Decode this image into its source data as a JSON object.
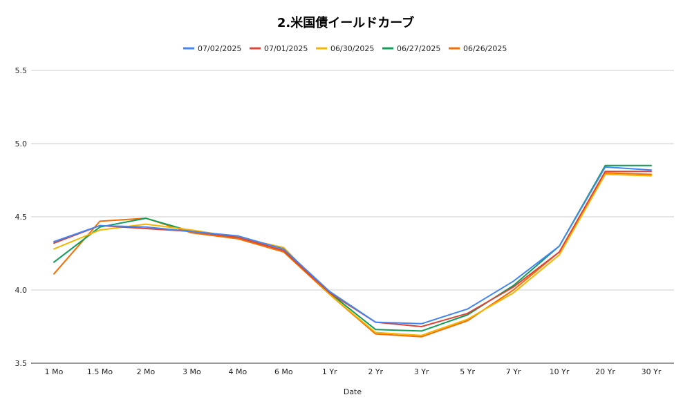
{
  "chart_data": {
    "type": "line",
    "title": "2.米国債イールドカーブ",
    "xlabel": "Date",
    "ylabel": "",
    "ylim": [
      3.5,
      5.5
    ],
    "yticks": [
      "3.5",
      "4.0",
      "4.5",
      "5.0",
      "5.5"
    ],
    "grid": true,
    "legend_position": "top",
    "categories": [
      "1 Mo",
      "1.5 Mo",
      "2 Mo",
      "3 Mo",
      "4 Mo",
      "6 Mo",
      "1 Yr",
      "2 Yr",
      "3 Yr",
      "5 Yr",
      "7 Yr",
      "10 Yr",
      "20 Yr",
      "30 Yr"
    ],
    "series": [
      {
        "name": "07/02/2025",
        "color": "#4285f4",
        "values": [
          4.33,
          4.44,
          4.43,
          4.4,
          4.37,
          4.28,
          3.99,
          3.78,
          3.77,
          3.87,
          4.06,
          4.3,
          4.84,
          4.82
        ]
      },
      {
        "name": "07/01/2025",
        "color": "#db4437",
        "values": [
          4.32,
          4.44,
          4.42,
          4.4,
          4.36,
          4.27,
          3.98,
          3.78,
          3.75,
          3.84,
          4.02,
          4.26,
          4.81,
          4.81
        ]
      },
      {
        "name": "06/30/2025",
        "color": "#f4b400",
        "values": [
          4.28,
          4.41,
          4.45,
          4.41,
          4.36,
          4.29,
          3.97,
          3.71,
          3.69,
          3.8,
          3.98,
          4.24,
          4.79,
          4.78
        ]
      },
      {
        "name": "06/27/2025",
        "color": "#0f9d58",
        "values": [
          4.19,
          4.43,
          4.49,
          4.4,
          4.36,
          4.27,
          3.98,
          3.73,
          3.72,
          3.83,
          4.03,
          4.3,
          4.85,
          4.85
        ]
      },
      {
        "name": "06/26/2025",
        "color": "#f46d00",
        "values": [
          4.11,
          4.47,
          4.49,
          4.39,
          4.35,
          4.26,
          3.97,
          3.7,
          3.68,
          3.79,
          4.0,
          4.26,
          4.8,
          4.79
        ]
      }
    ]
  }
}
